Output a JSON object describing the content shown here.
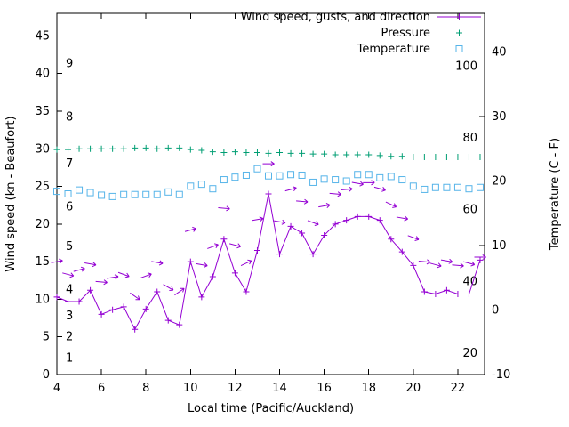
{
  "axes": {
    "x": {
      "label": "Local time (Pacific/Auckland)",
      "min": 4,
      "max": 23.2,
      "ticks": [
        4,
        6,
        8,
        10,
        12,
        14,
        16,
        18,
        20,
        22
      ]
    },
    "y_left": {
      "label": "Wind speed (kn - Beaufort)",
      "min": 0,
      "max": 48,
      "ticks": [
        0,
        5,
        10,
        15,
        20,
        25,
        30,
        35,
        40,
        45
      ]
    },
    "y_right": {
      "label": "Temperature (C - F)",
      "min": -10,
      "max": 46,
      "ticks": [
        -10,
        0,
        10,
        20,
        30,
        40
      ]
    },
    "beaufort_labels": [
      {
        "text": "1",
        "kn": 2.2
      },
      {
        "text": "2",
        "kn": 5.0
      },
      {
        "text": "3",
        "kn": 7.8
      },
      {
        "text": "4",
        "kn": 11.3
      },
      {
        "text": "5",
        "kn": 17.0
      },
      {
        "text": "6",
        "kn": 22.3
      },
      {
        "text": "7",
        "kn": 28.0
      },
      {
        "text": "8",
        "kn": 34.2
      },
      {
        "text": "9",
        "kn": 41.3
      }
    ],
    "fahrenheit_labels": [
      {
        "text": "20",
        "f": 20
      },
      {
        "text": "40",
        "f": 40
      },
      {
        "text": "60",
        "f": 60
      },
      {
        "text": "80",
        "f": 80
      },
      {
        "text": "100",
        "f": 100
      }
    ]
  },
  "legend": [
    {
      "label": "Wind speed, gusts, and direction",
      "color": "#9400d3",
      "marker": "plus-line"
    },
    {
      "label": "Pressure",
      "color": "#009e73",
      "marker": "plus"
    },
    {
      "label": "Temperature",
      "color": "#56b4e9",
      "marker": "square"
    }
  ],
  "chart_data": {
    "type": "line",
    "title": "",
    "xlabel": "Local time (Pacific/Auckland)",
    "ylabel_left": "Wind speed (kn - Beaufort)",
    "ylabel_right": "Temperature (C - F)",
    "x_range": [
      4,
      23.2
    ],
    "y_left_range": [
      0,
      48
    ],
    "y_right_range": [
      -10,
      46
    ],
    "grid": false,
    "legend_position": "top-right-inside",
    "x": [
      4,
      4.5,
      5,
      5.5,
      6,
      6.5,
      7,
      7.5,
      8,
      8.5,
      9,
      9.5,
      10,
      10.5,
      11,
      11.5,
      12,
      12.5,
      13,
      13.5,
      14,
      14.5,
      15,
      15.5,
      16,
      16.5,
      17,
      17.5,
      18,
      18.5,
      19,
      19.5,
      20,
      20.5,
      21,
      21.5,
      22,
      22.5,
      23
    ],
    "series": [
      {
        "name": "wind_speed_kn",
        "axis": "left",
        "color": "#9400d3",
        "marker": "plus",
        "line": true,
        "values": [
          10.3,
          9.7,
          9.7,
          11.2,
          8.0,
          8.6,
          9.0,
          6.0,
          8.7,
          11.0,
          7.2,
          6.6,
          15.0,
          10.3,
          13.0,
          18.0,
          13.5,
          11.0,
          16.5,
          24.0,
          16.0,
          19.7,
          18.8,
          16.0,
          18.5,
          20.0,
          20.5,
          21.0,
          21.0,
          20.5,
          18.0,
          16.3,
          14.5,
          11.0,
          10.7,
          11.2,
          10.7,
          10.7,
          15.2
        ]
      },
      {
        "name": "wind_gusts_kn_with_direction_arrows",
        "axis": "left",
        "color": "#9400d3",
        "marker": "arrow",
        "line": false,
        "values": [
          15.0,
          13.3,
          13.9,
          14.7,
          12.3,
          12.9,
          13.3,
          10.4,
          13.1,
          14.9,
          11.6,
          11.0,
          19.2,
          14.6,
          17.0,
          22.1,
          17.2,
          14.8,
          20.6,
          28.0,
          20.3,
          24.6,
          23.0,
          20.2,
          22.4,
          24.0,
          24.6,
          25.4,
          25.5,
          24.7,
          22.6,
          20.8,
          18.2,
          15.0,
          14.6,
          15.1,
          14.5,
          14.8,
          15.6
        ],
        "angles_deg": [
          -10,
          15,
          -15,
          10,
          5,
          -10,
          20,
          35,
          -20,
          10,
          30,
          -35,
          -15,
          10,
          -20,
          5,
          15,
          -25,
          -10,
          0,
          10,
          -15,
          5,
          20,
          -10,
          5,
          -5,
          10,
          0,
          15,
          25,
          10,
          20,
          5,
          15,
          10,
          5,
          15,
          0
        ]
      },
      {
        "name": "pressure",
        "axis": "left",
        "color": "#009e73",
        "marker": "plus",
        "line": false,
        "values": [
          29.9,
          29.9,
          30.0,
          30.0,
          30.0,
          30.0,
          30.0,
          30.1,
          30.1,
          30.0,
          30.1,
          30.1,
          29.9,
          29.8,
          29.6,
          29.5,
          29.6,
          29.5,
          29.5,
          29.4,
          29.5,
          29.4,
          29.4,
          29.3,
          29.3,
          29.2,
          29.2,
          29.2,
          29.2,
          29.1,
          29.0,
          29.0,
          28.9,
          28.9,
          28.9,
          28.9,
          28.9,
          28.9,
          28.9
        ]
      },
      {
        "name": "temperature_c",
        "axis": "right",
        "color": "#56b4e9",
        "marker": "square",
        "line": false,
        "values": [
          18.4,
          18.0,
          18.6,
          18.2,
          17.8,
          17.6,
          17.9,
          17.9,
          17.9,
          17.9,
          18.3,
          17.9,
          19.2,
          19.5,
          18.8,
          20.2,
          20.6,
          20.9,
          21.9,
          20.8,
          20.8,
          21.0,
          20.9,
          19.8,
          20.3,
          20.2,
          20.0,
          21.0,
          21.0,
          20.5,
          20.7,
          20.2,
          19.2,
          18.7,
          19.0,
          19.0,
          19.0,
          18.8,
          19.0
        ]
      }
    ]
  }
}
